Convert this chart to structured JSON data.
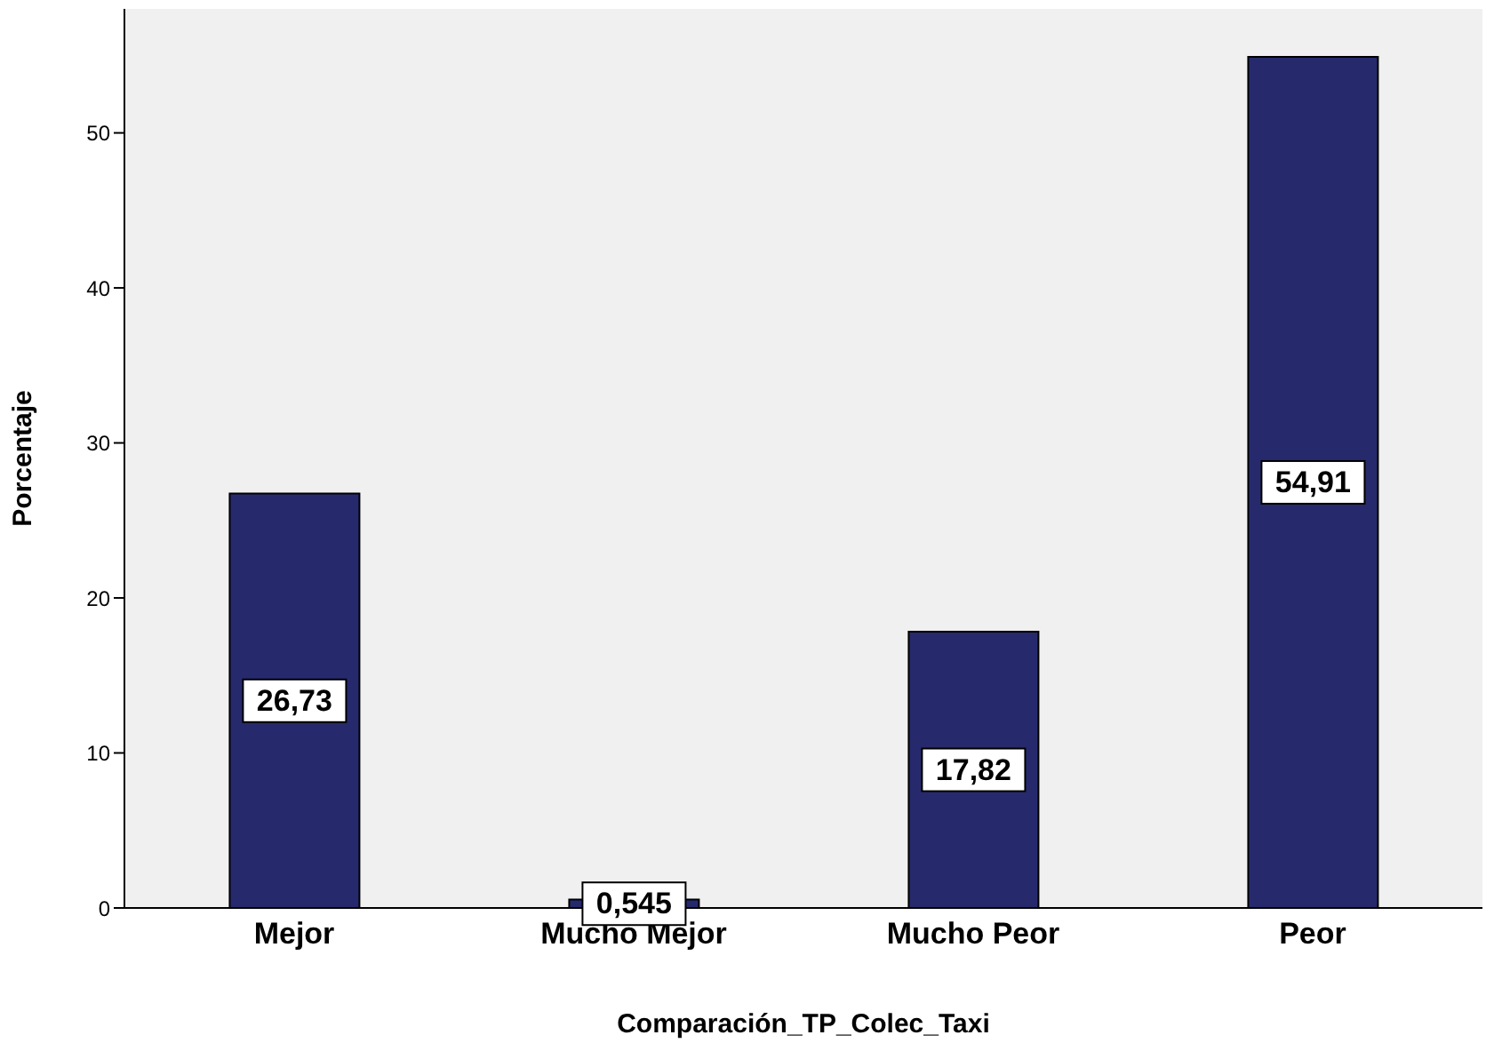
{
  "chart_data": {
    "type": "bar",
    "xlabel": "Comparación_TP_Colec_Taxi",
    "ylabel": "Porcentaje",
    "categories": [
      "Mejor",
      "Mucho Mejor",
      "Mucho Peor",
      "Peor"
    ],
    "values": [
      26.73,
      0.545,
      17.82,
      54.91
    ],
    "value_labels": [
      "26,73",
      "0,545",
      "17,82",
      "54,91"
    ],
    "color": "#262a6c",
    "ylim": [
      0,
      58
    ],
    "yticks": [
      0,
      10,
      20,
      30,
      40,
      50
    ],
    "grid": false,
    "legend": false
  }
}
